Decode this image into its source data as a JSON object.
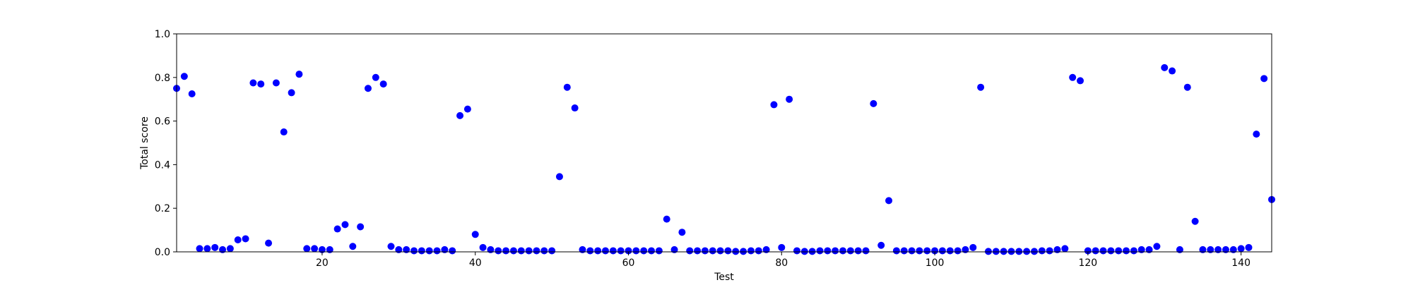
{
  "chart_data": {
    "type": "scatter",
    "title": "",
    "xlabel": "Test",
    "ylabel": "Total score",
    "xlim": [
      1,
      144
    ],
    "ylim": [
      0.0,
      1.0
    ],
    "grid": false,
    "legend": "none",
    "marker_color": "#0000ff",
    "x_ticks": [
      20,
      40,
      60,
      80,
      100,
      120,
      140
    ],
    "x_tick_labels": [
      "20",
      "40",
      "60",
      "80",
      "100",
      "120",
      "140"
    ],
    "y_ticks": [
      0.0,
      0.2,
      0.4,
      0.6,
      0.8,
      1.0
    ],
    "y_tick_labels": [
      "0.0",
      "0.2",
      "0.4",
      "0.6",
      "0.8",
      "1.0"
    ],
    "points": [
      {
        "x": 1,
        "y": 0.75
      },
      {
        "x": 2,
        "y": 0.805
      },
      {
        "x": 3,
        "y": 0.725
      },
      {
        "x": 4,
        "y": 0.015
      },
      {
        "x": 5,
        "y": 0.015
      },
      {
        "x": 6,
        "y": 0.02
      },
      {
        "x": 7,
        "y": 0.01
      },
      {
        "x": 8,
        "y": 0.015
      },
      {
        "x": 9,
        "y": 0.055
      },
      {
        "x": 10,
        "y": 0.06
      },
      {
        "x": 11,
        "y": 0.775
      },
      {
        "x": 12,
        "y": 0.77
      },
      {
        "x": 13,
        "y": 0.04
      },
      {
        "x": 14,
        "y": 0.775
      },
      {
        "x": 15,
        "y": 0.55
      },
      {
        "x": 16,
        "y": 0.73
      },
      {
        "x": 17,
        "y": 0.815
      },
      {
        "x": 18,
        "y": 0.015
      },
      {
        "x": 19,
        "y": 0.015
      },
      {
        "x": 20,
        "y": 0.01
      },
      {
        "x": 21,
        "y": 0.01
      },
      {
        "x": 22,
        "y": 0.105
      },
      {
        "x": 23,
        "y": 0.125
      },
      {
        "x": 24,
        "y": 0.025
      },
      {
        "x": 25,
        "y": 0.115
      },
      {
        "x": 26,
        "y": 0.75
      },
      {
        "x": 27,
        "y": 0.8
      },
      {
        "x": 28,
        "y": 0.77
      },
      {
        "x": 29,
        "y": 0.025
      },
      {
        "x": 30,
        "y": 0.01
      },
      {
        "x": 31,
        "y": 0.01
      },
      {
        "x": 32,
        "y": 0.005
      },
      {
        "x": 33,
        "y": 0.005
      },
      {
        "x": 34,
        "y": 0.005
      },
      {
        "x": 35,
        "y": 0.005
      },
      {
        "x": 36,
        "y": 0.01
      },
      {
        "x": 37,
        "y": 0.005
      },
      {
        "x": 38,
        "y": 0.625
      },
      {
        "x": 39,
        "y": 0.655
      },
      {
        "x": 40,
        "y": 0.08
      },
      {
        "x": 41,
        "y": 0.02
      },
      {
        "x": 42,
        "y": 0.01
      },
      {
        "x": 43,
        "y": 0.005
      },
      {
        "x": 44,
        "y": 0.005
      },
      {
        "x": 45,
        "y": 0.005
      },
      {
        "x": 46,
        "y": 0.005
      },
      {
        "x": 47,
        "y": 0.005
      },
      {
        "x": 48,
        "y": 0.005
      },
      {
        "x": 49,
        "y": 0.005
      },
      {
        "x": 50,
        "y": 0.005
      },
      {
        "x": 51,
        "y": 0.345
      },
      {
        "x": 52,
        "y": 0.755
      },
      {
        "x": 53,
        "y": 0.66
      },
      {
        "x": 54,
        "y": 0.01
      },
      {
        "x": 55,
        "y": 0.005
      },
      {
        "x": 56,
        "y": 0.005
      },
      {
        "x": 57,
        "y": 0.005
      },
      {
        "x": 58,
        "y": 0.005
      },
      {
        "x": 59,
        "y": 0.005
      },
      {
        "x": 60,
        "y": 0.005
      },
      {
        "x": 61,
        "y": 0.005
      },
      {
        "x": 62,
        "y": 0.005
      },
      {
        "x": 63,
        "y": 0.005
      },
      {
        "x": 64,
        "y": 0.005
      },
      {
        "x": 65,
        "y": 0.15
      },
      {
        "x": 66,
        "y": 0.01
      },
      {
        "x": 67,
        "y": 0.09
      },
      {
        "x": 68,
        "y": 0.005
      },
      {
        "x": 69,
        "y": 0.005
      },
      {
        "x": 70,
        "y": 0.005
      },
      {
        "x": 71,
        "y": 0.005
      },
      {
        "x": 72,
        "y": 0.005
      },
      {
        "x": 73,
        "y": 0.005
      },
      {
        "x": 74,
        "y": 0.002
      },
      {
        "x": 75,
        "y": 0.002
      },
      {
        "x": 76,
        "y": 0.005
      },
      {
        "x": 77,
        "y": 0.005
      },
      {
        "x": 78,
        "y": 0.01
      },
      {
        "x": 79,
        "y": 0.675
      },
      {
        "x": 80,
        "y": 0.02
      },
      {
        "x": 81,
        "y": 0.7
      },
      {
        "x": 82,
        "y": 0.005
      },
      {
        "x": 83,
        "y": 0.002
      },
      {
        "x": 84,
        "y": 0.002
      },
      {
        "x": 85,
        "y": 0.005
      },
      {
        "x": 86,
        "y": 0.005
      },
      {
        "x": 87,
        "y": 0.005
      },
      {
        "x": 88,
        "y": 0.005
      },
      {
        "x": 89,
        "y": 0.005
      },
      {
        "x": 90,
        "y": 0.005
      },
      {
        "x": 91,
        "y": 0.005
      },
      {
        "x": 92,
        "y": 0.68
      },
      {
        "x": 93,
        "y": 0.03
      },
      {
        "x": 94,
        "y": 0.235
      },
      {
        "x": 95,
        "y": 0.005
      },
      {
        "x": 96,
        "y": 0.005
      },
      {
        "x": 97,
        "y": 0.005
      },
      {
        "x": 98,
        "y": 0.005
      },
      {
        "x": 99,
        "y": 0.005
      },
      {
        "x": 100,
        "y": 0.005
      },
      {
        "x": 101,
        "y": 0.005
      },
      {
        "x": 102,
        "y": 0.005
      },
      {
        "x": 103,
        "y": 0.005
      },
      {
        "x": 104,
        "y": 0.01
      },
      {
        "x": 105,
        "y": 0.02
      },
      {
        "x": 106,
        "y": 0.755
      },
      {
        "x": 107,
        "y": 0.002
      },
      {
        "x": 108,
        "y": 0.002
      },
      {
        "x": 109,
        "y": 0.002
      },
      {
        "x": 110,
        "y": 0.002
      },
      {
        "x": 111,
        "y": 0.002
      },
      {
        "x": 112,
        "y": 0.002
      },
      {
        "x": 113,
        "y": 0.002
      },
      {
        "x": 114,
        "y": 0.005
      },
      {
        "x": 115,
        "y": 0.005
      },
      {
        "x": 116,
        "y": 0.01
      },
      {
        "x": 117,
        "y": 0.015
      },
      {
        "x": 118,
        "y": 0.8
      },
      {
        "x": 119,
        "y": 0.785
      },
      {
        "x": 120,
        "y": 0.005
      },
      {
        "x": 121,
        "y": 0.005
      },
      {
        "x": 122,
        "y": 0.005
      },
      {
        "x": 123,
        "y": 0.005
      },
      {
        "x": 124,
        "y": 0.005
      },
      {
        "x": 125,
        "y": 0.005
      },
      {
        "x": 126,
        "y": 0.005
      },
      {
        "x": 127,
        "y": 0.01
      },
      {
        "x": 128,
        "y": 0.01
      },
      {
        "x": 129,
        "y": 0.025
      },
      {
        "x": 130,
        "y": 0.845
      },
      {
        "x": 131,
        "y": 0.83
      },
      {
        "x": 132,
        "y": 0.01
      },
      {
        "x": 133,
        "y": 0.755
      },
      {
        "x": 134,
        "y": 0.14
      },
      {
        "x": 135,
        "y": 0.01
      },
      {
        "x": 136,
        "y": 0.01
      },
      {
        "x": 137,
        "y": 0.01
      },
      {
        "x": 138,
        "y": 0.01
      },
      {
        "x": 139,
        "y": 0.01
      },
      {
        "x": 140,
        "y": 0.015
      },
      {
        "x": 141,
        "y": 0.02
      },
      {
        "x": 142,
        "y": 0.54
      },
      {
        "x": 143,
        "y": 0.795
      },
      {
        "x": 144,
        "y": 0.24
      }
    ]
  }
}
